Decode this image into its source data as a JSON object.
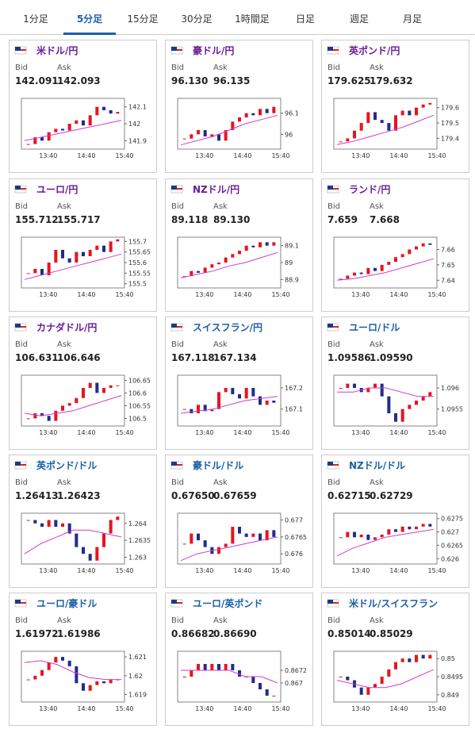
{
  "tabs": [
    "1分足",
    "5分足",
    "15分足",
    "30分足",
    "1時間足",
    "日足",
    "週足",
    "月足"
  ],
  "selected_tab": 1,
  "panels": [
    {
      "title": "米ドル/円",
      "title_color": "#6a1b9a",
      "bid_label": "Bid",
      "ask_label": "Ask",
      "bid": "142.091",
      "ask": "142.093",
      "chart_data": {
        "type": "candlestick",
        "x": [
          "13:40",
          "14:40",
          "15:40"
        ],
        "ylim": [
          141.85,
          142.15
        ],
        "yticks": [
          141.9,
          142,
          142.1
        ],
        "closes": [
          141.88,
          141.92,
          141.9,
          141.95,
          141.97,
          141.96,
          142.0,
          142.02,
          141.99,
          142.05,
          142.1,
          142.08,
          142.06,
          142.07
        ],
        "ma": [
          141.9,
          141.92,
          141.94,
          141.96,
          141.98,
          142.0,
          142.02
        ]
      }
    },
    {
      "title": "豪ドル/円",
      "title_color": "#6a1b9a",
      "bid_label": "Bid",
      "ask_label": "Ask",
      "bid": "96.130",
      "ask": "96.135",
      "chart_data": {
        "type": "candlestick",
        "x": [
          "13:40",
          "14:40",
          "15:40"
        ],
        "ylim": [
          95.93,
          96.17
        ],
        "yticks": [
          96,
          96.1
        ],
        "closes": [
          95.98,
          96.0,
          96.02,
          95.99,
          96.0,
          95.97,
          96.02,
          96.06,
          96.08,
          96.1,
          96.09,
          96.12,
          96.1,
          96.13
        ],
        "ma": [
          95.95,
          95.97,
          95.99,
          96.02,
          96.05,
          96.07,
          96.09
        ]
      }
    },
    {
      "title": "英ポンド/円",
      "title_color": "#6a1b9a",
      "bid_label": "Bid",
      "ask_label": "Ask",
      "bid": "179.625",
      "ask": "179.632",
      "chart_data": {
        "type": "candlestick",
        "x": [
          "13:40",
          "14:40",
          "15:40"
        ],
        "ylim": [
          179.33,
          179.66
        ],
        "yticks": [
          179.4,
          179.5,
          179.6
        ],
        "closes": [
          179.38,
          179.4,
          179.45,
          179.5,
          179.57,
          179.52,
          179.5,
          179.45,
          179.55,
          179.58,
          179.55,
          179.6,
          179.62,
          179.63
        ],
        "ma": [
          179.36,
          179.38,
          179.41,
          179.44,
          179.47,
          179.51,
          179.55
        ]
      }
    },
    {
      "title": "ユーロ/円",
      "title_color": "#6a1b9a",
      "bid_label": "Bid",
      "ask_label": "Ask",
      "bid": "155.712",
      "ask": "155.717",
      "chart_data": {
        "type": "candlestick",
        "x": [
          "13:40",
          "14:40",
          "15:40"
        ],
        "ylim": [
          155.48,
          155.72
        ],
        "yticks": [
          155.5,
          155.55,
          155.6,
          155.65,
          155.7
        ],
        "closes": [
          155.55,
          155.57,
          155.54,
          155.6,
          155.66,
          155.62,
          155.6,
          155.65,
          155.63,
          155.66,
          155.68,
          155.65,
          155.7,
          155.71
        ],
        "ma": [
          155.52,
          155.54,
          155.56,
          155.58,
          155.6,
          155.62,
          155.64
        ]
      }
    },
    {
      "title": "NZドル/円",
      "title_color": "#6a1b9a",
      "bid_label": "Bid",
      "ask_label": "Ask",
      "bid": "89.118",
      "ask": "89.130",
      "chart_data": {
        "type": "candlestick",
        "x": [
          "13:40",
          "14:40",
          "15:40"
        ],
        "ylim": [
          88.85,
          89.15
        ],
        "yticks": [
          88.9,
          89,
          89.1
        ],
        "closes": [
          88.92,
          88.95,
          88.94,
          88.97,
          88.99,
          89.0,
          89.03,
          89.05,
          89.07,
          89.1,
          89.09,
          89.12,
          89.1,
          89.12
        ],
        "ma": [
          88.91,
          88.93,
          88.95,
          88.98,
          89.0,
          89.03,
          89.06
        ]
      }
    },
    {
      "title": "ランド/円",
      "title_color": "#6a1b9a",
      "bid_label": "Bid",
      "ask_label": "Ask",
      "bid": "7.659",
      "ask": "7.668",
      "chart_data": {
        "type": "candlestick",
        "x": [
          "13:40",
          "14:40",
          "15:40"
        ],
        "ylim": [
          7.635,
          7.668
        ],
        "yticks": [
          7.64,
          7.65,
          7.66
        ],
        "closes": [
          7.641,
          7.643,
          7.645,
          7.644,
          7.648,
          7.646,
          7.65,
          7.652,
          7.655,
          7.657,
          7.66,
          7.662,
          7.664,
          7.663
        ],
        "ma": [
          7.64,
          7.641,
          7.643,
          7.645,
          7.648,
          7.651,
          7.654
        ]
      }
    },
    {
      "title": "カナダドル/円",
      "title_color": "#6a1b9a",
      "bid_label": "Bid",
      "ask_label": "Ask",
      "bid": "106.631",
      "ask": "106.646",
      "chart_data": {
        "type": "candlestick",
        "x": [
          "13:40",
          "14:40",
          "15:40"
        ],
        "ylim": [
          106.47,
          106.67
        ],
        "yticks": [
          106.5,
          106.55,
          106.6,
          106.65
        ],
        "closes": [
          106.5,
          106.52,
          106.51,
          106.49,
          106.53,
          106.55,
          106.56,
          106.58,
          106.62,
          106.64,
          106.6,
          106.62,
          106.63,
          106.63
        ],
        "ma": [
          106.52,
          106.51,
          106.52,
          106.53,
          106.55,
          106.57,
          106.59
        ]
      }
    },
    {
      "title": "スイスフラン/円",
      "title_color": "#1a5fa8",
      "bid_label": "Bid",
      "ask_label": "Ask",
      "bid": "167.118",
      "ask": "167.134",
      "chart_data": {
        "type": "candlestick",
        "x": [
          "13:40",
          "14:40",
          "15:40"
        ],
        "ylim": [
          167.02,
          167.26
        ],
        "yticks": [
          167.1,
          167.2
        ],
        "closes": [
          167.1,
          167.08,
          167.12,
          167.09,
          167.1,
          167.18,
          167.2,
          167.17,
          167.15,
          167.2,
          167.16,
          167.12,
          167.14,
          167.13
        ],
        "ma": [
          167.08,
          167.09,
          167.1,
          167.12,
          167.14,
          167.15,
          167.16
        ]
      }
    },
    {
      "title": "ユーロ/ドル",
      "title_color": "#1a5fa8",
      "bid_label": "Bid",
      "ask_label": "Ask",
      "bid": "1.09586",
      "ask": "1.09590",
      "chart_data": {
        "type": "candlestick",
        "x": [
          "13:40",
          "14:40",
          "15:40"
        ],
        "ylim": [
          1.0951,
          1.0963
        ],
        "yticks": [
          1.0955,
          1.096
        ],
        "closes": [
          1.096,
          1.0961,
          1.096,
          1.0959,
          1.096,
          1.0961,
          1.0958,
          1.0954,
          1.0952,
          1.0955,
          1.0956,
          1.0957,
          1.0958,
          1.0959
        ],
        "ma": [
          1.0959,
          1.0959,
          1.096,
          1.096,
          1.0959,
          1.0958,
          1.0958
        ]
      }
    },
    {
      "title": "英ポンド/ドル",
      "title_color": "#1a5fa8",
      "bid_label": "Bid",
      "ask_label": "Ask",
      "bid": "1.26413",
      "ask": "1.26423",
      "chart_data": {
        "type": "candlestick",
        "x": [
          "13:40",
          "14:40",
          "15:40"
        ],
        "ylim": [
          1.2628,
          1.2643
        ],
        "yticks": [
          1.263,
          1.2635,
          1.264
        ],
        "closes": [
          1.2641,
          1.264,
          1.2639,
          1.2641,
          1.2639,
          1.264,
          1.2637,
          1.2633,
          1.2631,
          1.2629,
          1.2633,
          1.2637,
          1.2641,
          1.2642
        ],
        "ma": [
          1.2631,
          1.2634,
          1.2636,
          1.2638,
          1.2638,
          1.2637,
          1.2636
        ]
      }
    },
    {
      "title": "豪ドル/ドル",
      "title_color": "#1a5fa8",
      "bid_label": "Bid",
      "ask_label": "Ask",
      "bid": "0.67650",
      "ask": "0.67659",
      "chart_data": {
        "type": "candlestick",
        "x": [
          "13:40",
          "14:40",
          "15:40"
        ],
        "ylim": [
          0.6757,
          0.6772
        ],
        "yticks": [
          0.676,
          0.6765,
          0.677
        ],
        "closes": [
          0.6763,
          0.6766,
          0.6764,
          0.6762,
          0.676,
          0.6762,
          0.6763,
          0.6768,
          0.6766,
          0.6765,
          0.6766,
          0.6764,
          0.6767,
          0.6765
        ],
        "ma": [
          0.6758,
          0.676,
          0.6761,
          0.6762,
          0.6763,
          0.6764,
          0.6765
        ]
      }
    },
    {
      "title": "NZドル/ドル",
      "title_color": "#1a5fa8",
      "bid_label": "Bid",
      "ask_label": "Ask",
      "bid": "0.62715",
      "ask": "0.62729",
      "chart_data": {
        "type": "candlestick",
        "x": [
          "13:40",
          "14:40",
          "15:40"
        ],
        "ylim": [
          0.6258,
          0.6277
        ],
        "yticks": [
          0.626,
          0.6265,
          0.627,
          0.6275
        ],
        "closes": [
          0.6268,
          0.627,
          0.6268,
          0.6269,
          0.6267,
          0.6268,
          0.6269,
          0.6271,
          0.627,
          0.6272,
          0.6271,
          0.6272,
          0.6273,
          0.6272
        ],
        "ma": [
          0.6261,
          0.6264,
          0.6266,
          0.6268,
          0.6269,
          0.627,
          0.6271
        ]
      }
    },
    {
      "title": "ユーロ/豪ドル",
      "title_color": "#1a5fa8",
      "bid_label": "Bid",
      "ask_label": "Ask",
      "bid": "1.61972",
      "ask": "1.61986",
      "chart_data": {
        "type": "candlestick",
        "x": [
          "13:40",
          "14:40",
          "15:40"
        ],
        "ylim": [
          1.6186,
          1.6213
        ],
        "yticks": [
          1.619,
          1.62,
          1.621
        ],
        "closes": [
          1.6198,
          1.62,
          1.6203,
          1.6207,
          1.621,
          1.6208,
          1.6205,
          1.6196,
          1.6192,
          1.6195,
          1.6197,
          1.6196,
          1.6198,
          1.6198
        ],
        "ma": [
          1.6207,
          1.6208,
          1.6206,
          1.6202,
          1.6199,
          1.6198,
          1.6198
        ]
      }
    },
    {
      "title": "ユーロ/英ポンド",
      "title_color": "#1a5fa8",
      "bid_label": "Bid",
      "ask_label": "Ask",
      "bid": "0.86682",
      "ask": "0.86690",
      "chart_data": {
        "type": "candlestick",
        "x": [
          "13:40",
          "14:40",
          "15:40"
        ],
        "ylim": [
          0.8667,
          0.8675
        ],
        "yticks": [
          0.867,
          0.8672
        ],
        "closes": [
          0.8671,
          0.8672,
          0.8673,
          0.8672,
          0.8673,
          0.8672,
          0.8673,
          0.8672,
          0.8671,
          0.8671,
          0.867,
          0.8669,
          0.8668,
          0.8668
        ],
        "ma": [
          0.8672,
          0.8672,
          0.8672,
          0.8672,
          0.8671,
          0.8671,
          0.867
        ]
      }
    },
    {
      "title": "米ドル/スイスフラン",
      "title_color": "#1a5fa8",
      "bid_label": "Bid",
      "ask_label": "Ask",
      "bid": "0.85014",
      "ask": "0.85029",
      "chart_data": {
        "type": "candlestick",
        "x": [
          "13:40",
          "14:40",
          "15:40"
        ],
        "ylim": [
          0.8488,
          0.8502
        ],
        "yticks": [
          0.849,
          0.8495,
          0.85
        ],
        "closes": [
          0.8495,
          0.8494,
          0.8492,
          0.849,
          0.8492,
          0.8493,
          0.8495,
          0.8497,
          0.8499,
          0.85,
          0.8499,
          0.8501,
          0.85,
          0.8501
        ],
        "ma": [
          0.8494,
          0.8493,
          0.8492,
          0.8492,
          0.8493,
          0.8495,
          0.8497
        ]
      }
    }
  ]
}
